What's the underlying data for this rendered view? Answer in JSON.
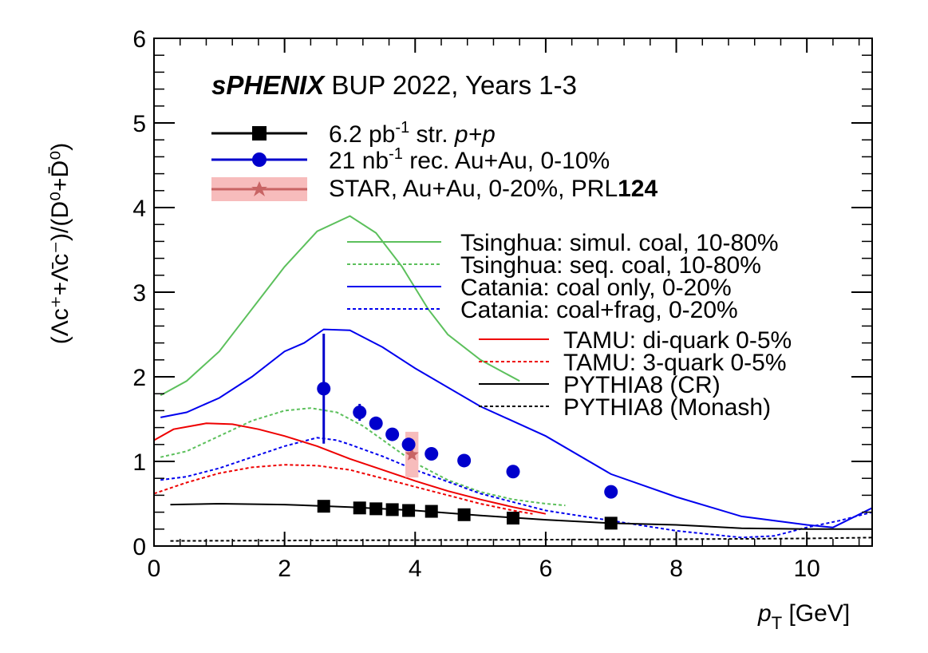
{
  "chart_data": {
    "type": "line",
    "title_main": "sPHENIX",
    "title_rest": " BUP 2022, Years 1-3",
    "xlabel": {
      "main": "p",
      "sub": "T",
      "unit": " [GeV]"
    },
    "ylabel": "(Λc⁺+Λ̄c⁻)/(D⁰+D̄⁰)",
    "xlim": [
      0,
      11
    ],
    "ylim": [
      0,
      6
    ],
    "x_ticks": [
      0,
      2,
      4,
      6,
      8,
      10
    ],
    "y_ticks": [
      0,
      1,
      2,
      3,
      4,
      5,
      6
    ],
    "legend_top": [
      {
        "parts": [
          "6.2 pb",
          "-1",
          " str. ",
          "p+p"
        ],
        "color": "#000000",
        "marker": "square"
      },
      {
        "parts": [
          "21 nb",
          "-1",
          " rec. Au+Au, 0-10%"
        ],
        "color": "#0000cc",
        "marker": "circle"
      },
      {
        "parts": [
          "STAR, Au+Au, 0-20%, PRL",
          "124"
        ],
        "color": "#c86464",
        "marker": "star"
      }
    ],
    "legend_models": [
      {
        "label": "Tsinghua: simul. coal, 10-80%",
        "color": "#5cc05c",
        "dash": "solid"
      },
      {
        "label": "Tsinghua: seq. coal, 10-80%",
        "color": "#5cc05c",
        "dash": "dotted"
      },
      {
        "label": "Catania: coal only, 0-20%",
        "color": "#0000ee",
        "dash": "solid"
      },
      {
        "label": "Catania: coal+frag, 0-20%",
        "color": "#0000ee",
        "dash": "dotted"
      },
      {
        "label": "TAMU: di-quark 0-5%",
        "color": "#ee0000",
        "dash": "solid"
      },
      {
        "label": "TAMU: 3-quark 0-5%",
        "color": "#ee0000",
        "dash": "dotted"
      },
      {
        "label": "PYTHIA8 (CR)",
        "color": "#000000",
        "dash": "solid"
      },
      {
        "label": "PYTHIA8 (Monash)",
        "color": "#000000",
        "dash": "dotted"
      }
    ],
    "series": [
      {
        "name": "Tsinghua simul",
        "color": "#5cc05c",
        "dash": "solid",
        "x": [
          0.1,
          0.5,
          1.0,
          1.5,
          2.0,
          2.5,
          3.0,
          3.4,
          3.8,
          4.2,
          4.5,
          5.0,
          5.6
        ],
        "y": [
          1.78,
          1.95,
          2.3,
          2.8,
          3.3,
          3.72,
          3.9,
          3.7,
          3.3,
          2.8,
          2.5,
          2.2,
          1.95
        ]
      },
      {
        "name": "Tsinghua seq",
        "color": "#5cc05c",
        "dash": "dotted",
        "x": [
          0.1,
          0.5,
          1.0,
          1.5,
          2.0,
          2.4,
          2.8,
          3.2,
          3.6,
          4.0,
          4.5,
          5.0,
          5.5,
          6.0,
          6.3
        ],
        "y": [
          1.05,
          1.12,
          1.3,
          1.48,
          1.6,
          1.63,
          1.58,
          1.42,
          1.2,
          0.98,
          0.78,
          0.64,
          0.55,
          0.5,
          0.48
        ]
      },
      {
        "name": "Catania coal only",
        "color": "#0000ee",
        "dash": "solid",
        "x": [
          0.1,
          0.5,
          1.0,
          1.5,
          2.0,
          2.3,
          2.6,
          3.0,
          3.5,
          4.0,
          5.0,
          6.0,
          7.0,
          8.0,
          9.0,
          10.0,
          10.4,
          11.0
        ],
        "y": [
          1.52,
          1.58,
          1.75,
          2.0,
          2.3,
          2.4,
          2.56,
          2.55,
          2.35,
          2.1,
          1.65,
          1.3,
          0.85,
          0.58,
          0.35,
          0.25,
          0.22,
          0.45
        ]
      },
      {
        "name": "Catania coal+frag",
        "color": "#0000ee",
        "dash": "dotted",
        "x": [
          0.1,
          0.5,
          1.0,
          1.5,
          2.0,
          2.5,
          2.8,
          3.0,
          3.5,
          4.0,
          4.5,
          5.0,
          6.0,
          7.0,
          8.0,
          9.0,
          9.5,
          10.0,
          10.5,
          11.0
        ],
        "y": [
          0.78,
          0.82,
          0.92,
          1.05,
          1.18,
          1.28,
          1.25,
          1.2,
          1.06,
          0.9,
          0.76,
          0.62,
          0.42,
          0.3,
          0.18,
          0.1,
          0.12,
          0.22,
          0.3,
          0.4
        ]
      },
      {
        "name": "TAMU di-quark",
        "color": "#ee0000",
        "dash": "solid",
        "x": [
          0.0,
          0.3,
          0.8,
          1.2,
          1.6,
          2.0,
          2.5,
          3.0,
          3.5,
          4.0,
          4.5,
          5.0,
          5.5,
          6.0
        ],
        "y": [
          1.25,
          1.38,
          1.45,
          1.44,
          1.38,
          1.3,
          1.18,
          1.03,
          0.9,
          0.77,
          0.65,
          0.55,
          0.46,
          0.38
        ]
      },
      {
        "name": "TAMU 3-quark",
        "color": "#ee0000",
        "dash": "dotted",
        "x": [
          0.0,
          0.5,
          1.0,
          1.5,
          2.0,
          2.5,
          3.0,
          3.5,
          4.0,
          4.5,
          5.0,
          5.5,
          5.8
        ],
        "y": [
          0.62,
          0.75,
          0.86,
          0.93,
          0.96,
          0.95,
          0.9,
          0.8,
          0.7,
          0.6,
          0.5,
          0.42,
          0.38
        ]
      },
      {
        "name": "PYTHIA8 CR",
        "color": "#000000",
        "dash": "solid",
        "x": [
          0.25,
          1.0,
          2.0,
          3.0,
          4.0,
          5.0,
          6.0,
          7.0,
          8.0,
          9.0,
          10.0,
          11.0
        ],
        "y": [
          0.49,
          0.5,
          0.49,
          0.46,
          0.42,
          0.36,
          0.31,
          0.27,
          0.25,
          0.21,
          0.2,
          0.2
        ]
      },
      {
        "name": "PYTHIA8 Monash",
        "color": "#000000",
        "dash": "dotted",
        "x": [
          0.25,
          2.0,
          4.0,
          6.0,
          8.0,
          10.0,
          11.0
        ],
        "y": [
          0.06,
          0.065,
          0.07,
          0.075,
          0.08,
          0.09,
          0.1
        ]
      }
    ],
    "points_pp": {
      "x": [
        2.6,
        3.15,
        3.4,
        3.65,
        3.9,
        4.25,
        4.75,
        5.5,
        7.0
      ],
      "y": [
        0.47,
        0.45,
        0.44,
        0.43,
        0.42,
        0.41,
        0.37,
        0.33,
        0.27
      ],
      "err": [
        0.05,
        0.03,
        0.02,
        0.02,
        0.02,
        0.02,
        0.02,
        0.03,
        0.03
      ]
    },
    "points_auau": {
      "x": [
        2.6,
        3.15,
        3.4,
        3.65,
        3.9,
        4.25,
        4.75,
        5.5,
        7.0
      ],
      "y": [
        1.86,
        1.58,
        1.45,
        1.32,
        1.2,
        1.09,
        1.01,
        0.88,
        0.64
      ],
      "err": [
        0.65,
        0.1,
        0.0,
        0.0,
        0.0,
        0.0,
        0.0,
        0.0,
        0.0
      ]
    },
    "points_star": {
      "x": [
        3.95
      ],
      "y": [
        1.08
      ],
      "xerr": [
        0.1
      ],
      "syst": [
        0.27
      ]
    }
  }
}
